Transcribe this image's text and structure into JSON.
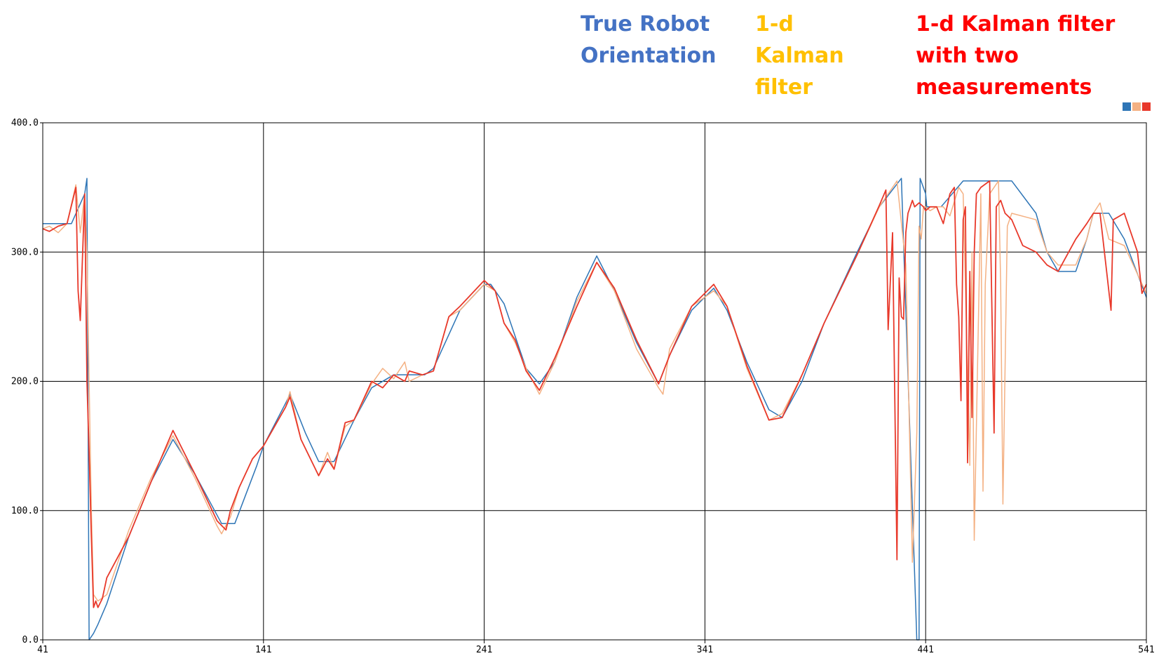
{
  "chart_data": {
    "type": "line",
    "title": "",
    "xlabel": "",
    "ylabel": "",
    "xlim": [
      41,
      541
    ],
    "ylim": [
      0,
      400
    ],
    "x_ticks": [
      "41",
      "141",
      "241",
      "341",
      "441",
      "541"
    ],
    "y_ticks": [
      "0.0",
      "100.0",
      "200.0",
      "300.0",
      "400.0"
    ],
    "grid": true,
    "legend_position": "top-right",
    "series": [
      {
        "name": "True Robot Orientation",
        "text_color": "#4472C4",
        "color": "#2E75B6",
        "x": [
          41,
          54,
          60,
          61,
          62,
          64,
          66,
          70,
          80,
          90,
          100,
          110,
          122,
          128,
          138,
          141,
          151,
          153,
          160,
          166,
          173,
          182,
          190,
          200,
          214,
          218,
          230,
          241,
          244,
          250,
          260,
          266,
          273,
          283,
          292,
          300,
          310,
          320,
          325,
          335,
          345,
          351,
          360,
          370,
          376,
          385,
          395,
          410,
          420,
          430,
          437,
          438,
          438.5,
          441,
          441.5,
          442.5,
          444,
          448,
          458,
          460,
          480,
          491,
          496,
          501,
          509,
          514,
          517,
          524,
          531,
          541
        ],
        "y": [
          322,
          322,
          345,
          357,
          0,
          5,
          12,
          28,
          80,
          122,
          155,
          128,
          90,
          90,
          135,
          150,
          183,
          190,
          160,
          138,
          138,
          170,
          195,
          205,
          205,
          210,
          255,
          275,
          275,
          260,
          210,
          198,
          215,
          265,
          297,
          270,
          230,
          198,
          220,
          255,
          272,
          255,
          215,
          178,
          172,
          200,
          245,
          300,
          335,
          357,
          0,
          0,
          357,
          345,
          335,
          335,
          335,
          335,
          355,
          355,
          355,
          330,
          300,
          285,
          285,
          310,
          330,
          330,
          310,
          265
        ]
      },
      {
        "name": "1-d Kalman filter",
        "text_color": "#FFC000",
        "color": "#F4B183",
        "x": [
          41,
          44,
          48,
          52,
          56,
          58,
          60,
          61,
          62,
          63,
          64,
          66,
          70,
          80,
          90,
          100,
          110,
          120,
          122,
          126,
          130,
          136,
          141,
          151,
          153,
          158,
          166,
          170,
          173,
          178,
          182,
          190,
          195,
          200,
          205,
          207,
          213,
          218,
          225,
          230,
          241,
          246,
          250,
          255,
          260,
          266,
          273,
          283,
          292,
          300,
          310,
          320,
          322,
          325,
          335,
          345,
          351,
          360,
          370,
          376,
          385,
          395,
          410,
          420,
          428,
          432,
          435,
          437,
          438,
          439,
          440,
          441,
          443,
          446,
          449,
          452,
          456,
          458,
          461,
          462,
          463,
          466,
          467,
          468,
          470,
          472,
          474,
          475,
          476,
          478,
          480,
          491,
          496,
          501,
          509,
          514,
          517,
          520,
          524,
          531,
          541
        ],
        "y": [
          318,
          320,
          315,
          322,
          352,
          315,
          345,
          300,
          200,
          100,
          35,
          30,
          35,
          85,
          125,
          158,
          125,
          88,
          82,
          95,
          118,
          140,
          150,
          180,
          192,
          155,
          127,
          145,
          132,
          165,
          170,
          198,
          210,
          202,
          215,
          200,
          205,
          208,
          250,
          255,
          275,
          270,
          245,
          230,
          210,
          190,
          215,
          262,
          292,
          270,
          225,
          195,
          190,
          225,
          258,
          270,
          258,
          210,
          170,
          175,
          205,
          245,
          298,
          335,
          355,
          290,
          60,
          160,
          320,
          310,
          335,
          335,
          332,
          335,
          335,
          328,
          350,
          345,
          135,
          300,
          77,
          345,
          115,
          275,
          345,
          350,
          355,
          275,
          105,
          320,
          330,
          325,
          300,
          290,
          290,
          310,
          330,
          338,
          310,
          305,
          268
        ]
      },
      {
        "name": "1-d Kalman filter with two measurements",
        "text_color": "#FF0000",
        "color": "#E8392B",
        "x": [
          41,
          44,
          48,
          52,
          56,
          57,
          58,
          60,
          61,
          62,
          63,
          64,
          65,
          66,
          68,
          70,
          80,
          90,
          100,
          110,
          120,
          124,
          126,
          130,
          136,
          141,
          151,
          153,
          158,
          166,
          170,
          173,
          178,
          182,
          190,
          195,
          200,
          205,
          207,
          213,
          218,
          225,
          230,
          241,
          246,
          250,
          255,
          260,
          266,
          273,
          283,
          292,
          300,
          310,
          320,
          325,
          335,
          345,
          351,
          360,
          370,
          376,
          385,
          395,
          410,
          420,
          423,
          424,
          426,
          428,
          429,
          430,
          431,
          432,
          433,
          434,
          435,
          436,
          438,
          440,
          441,
          443,
          446,
          449,
          452,
          454,
          455,
          456,
          457,
          458,
          459,
          460,
          461,
          462,
          463,
          464,
          466,
          470,
          472,
          473,
          475,
          477,
          480,
          485,
          491,
          496,
          501,
          509,
          514,
          517,
          520,
          525,
          526,
          531,
          537,
          539,
          541
        ],
        "y": [
          318,
          316,
          320,
          322,
          350,
          270,
          247,
          345,
          200,
          145,
          80,
          25,
          30,
          25,
          32,
          48,
          80,
          122,
          162,
          128,
          92,
          85,
          100,
          118,
          140,
          150,
          180,
          188,
          155,
          127,
          140,
          132,
          168,
          170,
          200,
          195,
          205,
          200,
          208,
          205,
          208,
          250,
          258,
          278,
          270,
          245,
          232,
          208,
          193,
          218,
          258,
          292,
          272,
          232,
          198,
          220,
          258,
          275,
          258,
          212,
          170,
          172,
          205,
          245,
          298,
          336,
          348,
          240,
          315,
          62,
          280,
          250,
          248,
          315,
          330,
          335,
          340,
          335,
          338,
          335,
          332,
          335,
          335,
          322,
          345,
          350,
          275,
          250,
          185,
          325,
          335,
          137,
          285,
          172,
          300,
          345,
          350,
          355,
          160,
          335,
          340,
          330,
          325,
          305,
          300,
          290,
          285,
          310,
          322,
          330,
          330,
          255,
          325,
          330,
          300,
          268,
          275
        ]
      }
    ]
  }
}
